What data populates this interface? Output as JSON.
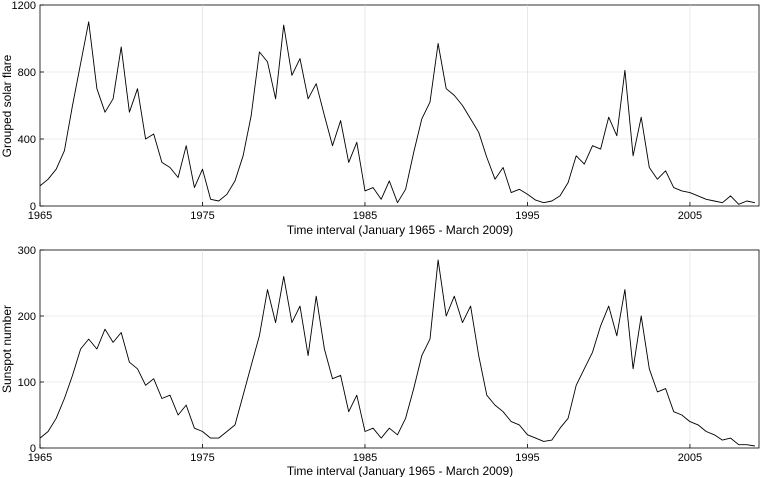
{
  "chart_data": [
    {
      "type": "line",
      "title": "",
      "xlabel": "Time interval (January 1965 - March 2009)",
      "ylabel": "Grouped solar flare",
      "xlim": [
        1965,
        2009.25
      ],
      "ylim": [
        0,
        1200
      ],
      "xticks": [
        "1965",
        "1975",
        "1985",
        "1995",
        "2005"
      ],
      "yticks": [
        "0",
        "400",
        "800",
        "1200"
      ],
      "grid": true,
      "x": [
        1965.0,
        1965.5,
        1966.0,
        1966.5,
        1967.0,
        1967.5,
        1968.0,
        1968.5,
        1969.0,
        1969.5,
        1970.0,
        1970.5,
        1971.0,
        1971.5,
        1972.0,
        1972.5,
        1973.0,
        1973.5,
        1974.0,
        1974.5,
        1975.0,
        1975.5,
        1976.0,
        1976.5,
        1977.0,
        1977.5,
        1978.0,
        1978.5,
        1979.0,
        1979.5,
        1980.0,
        1980.5,
        1981.0,
        1981.5,
        1982.0,
        1982.5,
        1983.0,
        1983.5,
        1984.0,
        1984.5,
        1985.0,
        1985.5,
        1986.0,
        1986.5,
        1987.0,
        1987.5,
        1988.0,
        1988.5,
        1989.0,
        1989.5,
        1990.0,
        1990.5,
        1991.0,
        1991.5,
        1992.0,
        1992.5,
        1993.0,
        1993.5,
        1994.0,
        1994.5,
        1995.0,
        1995.5,
        1996.0,
        1996.5,
        1997.0,
        1997.5,
        1998.0,
        1998.5,
        1999.0,
        1999.5,
        2000.0,
        2000.5,
        2001.0,
        2001.5,
        2002.0,
        2002.5,
        2003.0,
        2003.5,
        2004.0,
        2004.5,
        2005.0,
        2005.5,
        2006.0,
        2006.5,
        2007.0,
        2007.5,
        2008.0,
        2008.5,
        2009.0
      ],
      "series": [
        {
          "values": [
            120,
            160,
            220,
            330,
            600,
            850,
            1100,
            700,
            560,
            640,
            950,
            560,
            700,
            400,
            430,
            260,
            230,
            170,
            360,
            110,
            220,
            40,
            30,
            70,
            150,
            300,
            540,
            920,
            860,
            640,
            1080,
            780,
            880,
            640,
            730,
            540,
            360,
            510,
            260,
            380,
            90,
            110,
            40,
            150,
            20,
            100,
            320,
            520,
            620,
            970,
            700,
            660,
            600,
            520,
            440,
            290,
            160,
            230,
            80,
            100,
            70,
            35,
            20,
            30,
            60,
            140,
            300,
            250,
            360,
            340,
            530,
            420,
            810,
            300,
            530,
            230,
            160,
            210,
            110,
            90,
            80,
            60,
            40,
            30,
            20,
            60,
            10,
            30,
            20
          ]
        }
      ]
    },
    {
      "type": "line",
      "title": "",
      "xlabel": "Time interval (January 1965 - March 2009)",
      "ylabel": "Sunspot number",
      "xlim": [
        1965,
        2009.25
      ],
      "ylim": [
        0,
        300
      ],
      "xticks": [
        "1965",
        "1975",
        "1985",
        "1995",
        "2005"
      ],
      "yticks": [
        "0",
        "100",
        "200",
        "300"
      ],
      "grid": true,
      "x": [
        1965.0,
        1965.5,
        1966.0,
        1966.5,
        1967.0,
        1967.5,
        1968.0,
        1968.5,
        1969.0,
        1969.5,
        1970.0,
        1970.5,
        1971.0,
        1971.5,
        1972.0,
        1972.5,
        1973.0,
        1973.5,
        1974.0,
        1974.5,
        1975.0,
        1975.5,
        1976.0,
        1976.5,
        1977.0,
        1977.5,
        1978.0,
        1978.5,
        1979.0,
        1979.5,
        1980.0,
        1980.5,
        1981.0,
        1981.5,
        1982.0,
        1982.5,
        1983.0,
        1983.5,
        1984.0,
        1984.5,
        1985.0,
        1985.5,
        1986.0,
        1986.5,
        1987.0,
        1987.5,
        1988.0,
        1988.5,
        1989.0,
        1989.5,
        1990.0,
        1990.5,
        1991.0,
        1991.5,
        1992.0,
        1992.5,
        1993.0,
        1993.5,
        1994.0,
        1994.5,
        1995.0,
        1995.5,
        1996.0,
        1996.5,
        1997.0,
        1997.5,
        1998.0,
        1998.5,
        1999.0,
        1999.5,
        2000.0,
        2000.5,
        2001.0,
        2001.5,
        2002.0,
        2002.5,
        2003.0,
        2003.5,
        2004.0,
        2004.5,
        2005.0,
        2005.5,
        2006.0,
        2006.5,
        2007.0,
        2007.5,
        2008.0,
        2008.5,
        2009.0
      ],
      "series": [
        {
          "values": [
            15,
            25,
            45,
            75,
            110,
            150,
            165,
            150,
            180,
            160,
            175,
            130,
            120,
            95,
            105,
            75,
            80,
            50,
            65,
            30,
            25,
            15,
            15,
            25,
            35,
            80,
            125,
            170,
            240,
            190,
            260,
            190,
            215,
            140,
            230,
            150,
            105,
            110,
            55,
            80,
            25,
            30,
            15,
            30,
            20,
            45,
            90,
            140,
            165,
            285,
            200,
            230,
            190,
            215,
            140,
            80,
            65,
            55,
            40,
            35,
            20,
            15,
            10,
            12,
            30,
            45,
            95,
            120,
            145,
            185,
            215,
            170,
            240,
            120,
            200,
            120,
            85,
            90,
            55,
            50,
            40,
            35,
            25,
            20,
            12,
            15,
            5,
            5,
            3
          ]
        }
      ]
    }
  ]
}
